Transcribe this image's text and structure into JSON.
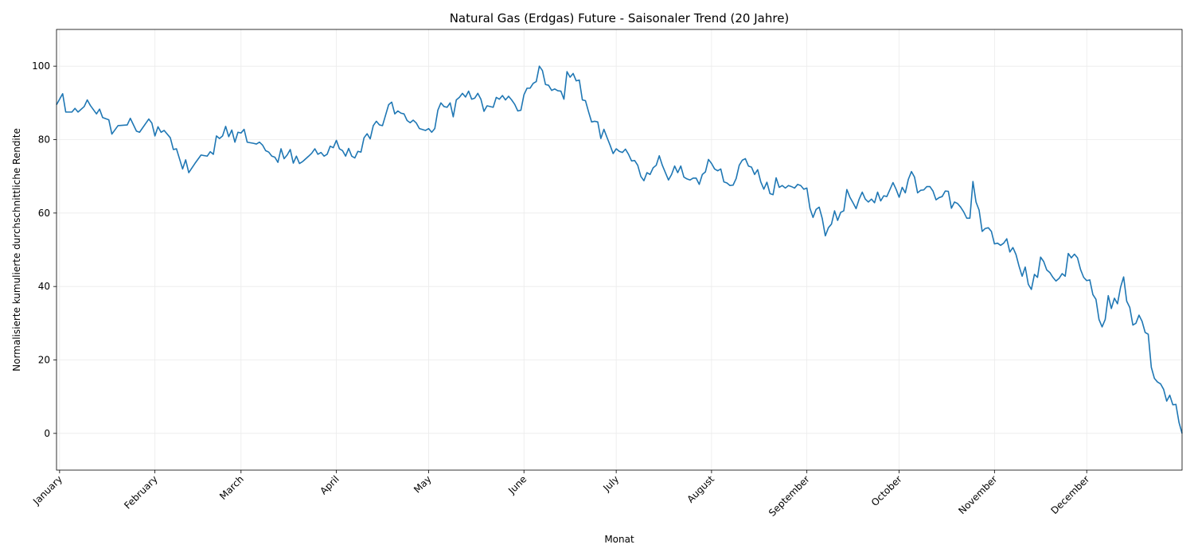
{
  "chart_data": {
    "type": "line",
    "title": "Natural Gas (Erdgas) Future - Saisonaler Trend (20 Jahre)",
    "x_label": "Monat",
    "y_label": "Normalisierte kumulierte durchschnittliche Rendite",
    "xlim": [
      0,
      366
    ],
    "ylim": [
      -10,
      110
    ],
    "xticks": [
      {
        "value": 1,
        "label": "January"
      },
      {
        "value": 32,
        "label": "February"
      },
      {
        "value": 60,
        "label": "March"
      },
      {
        "value": 91,
        "label": "April"
      },
      {
        "value": 121,
        "label": "May"
      },
      {
        "value": 152,
        "label": "June"
      },
      {
        "value": 182,
        "label": "July"
      },
      {
        "value": 213,
        "label": "August"
      },
      {
        "value": 244,
        "label": "September"
      },
      {
        "value": 274,
        "label": "October"
      },
      {
        "value": 305,
        "label": "November"
      },
      {
        "value": 335,
        "label": "December"
      }
    ],
    "yticks": [
      0,
      20,
      40,
      60,
      80,
      100
    ],
    "grid": true,
    "series": [
      {
        "color": "#1f77b4",
        "x": [
          0,
          2,
          3,
          5,
          6,
          7,
          9,
          10,
          11,
          13,
          14,
          15,
          17,
          18,
          20,
          23,
          24,
          26,
          27,
          30,
          31,
          32,
          33,
          34,
          35,
          37,
          38,
          39,
          41,
          42,
          43,
          45,
          47,
          49,
          50,
          51,
          52,
          53,
          54,
          55,
          56,
          57,
          58,
          59,
          60,
          61,
          62,
          64,
          65,
          66,
          67,
          68,
          69,
          70,
          71,
          72,
          73,
          74,
          75,
          76,
          77,
          78,
          79,
          80,
          82,
          83,
          84,
          85,
          86,
          87,
          88,
          89,
          90,
          91,
          92,
          93,
          94,
          95,
          96,
          97,
          98,
          99,
          100,
          101,
          102,
          103,
          104,
          105,
          106,
          108,
          109,
          110,
          111,
          112,
          113,
          114,
          115,
          116,
          117,
          118,
          120,
          121,
          122,
          123,
          124,
          125,
          126,
          127,
          128,
          129,
          130,
          131,
          132,
          133,
          134,
          135,
          136,
          137,
          138,
          139,
          140,
          142,
          143,
          144,
          145,
          146,
          147,
          148,
          149,
          150,
          151,
          152,
          153,
          154,
          155,
          156,
          157,
          158,
          159,
          160,
          161,
          162,
          163,
          164,
          165,
          166,
          167,
          168,
          169,
          170,
          171,
          172,
          173,
          174,
          175,
          176,
          177,
          178,
          179,
          180,
          181,
          182,
          183,
          184,
          185,
          186,
          187,
          188,
          189,
          190,
          191,
          192,
          193,
          194,
          195,
          196,
          197,
          198,
          199,
          200,
          201,
          202,
          203,
          204,
          205,
          206,
          207,
          208,
          209,
          210,
          211,
          212,
          213,
          214,
          215,
          216,
          217,
          218,
          219,
          220,
          221,
          222,
          223,
          224,
          225,
          226,
          227,
          228,
          229,
          230,
          231,
          232,
          233,
          234,
          235,
          236,
          237,
          238,
          239,
          240,
          241,
          242,
          243,
          244,
          245,
          246,
          247,
          248,
          249,
          250,
          251,
          252,
          253,
          254,
          255,
          256,
          257,
          258,
          259,
          260,
          261,
          262,
          263,
          264,
          265,
          266,
          267,
          268,
          269,
          270,
          271,
          272,
          273,
          274,
          275,
          276,
          277,
          278,
          279,
          280,
          281,
          282,
          283,
          284,
          285,
          286,
          287,
          288,
          289,
          290,
          291,
          292,
          293,
          294,
          295,
          296,
          297,
          298,
          299,
          300,
          301,
          302,
          303,
          304,
          305,
          306,
          307,
          308,
          309,
          310,
          311,
          312,
          313,
          314,
          315,
          316,
          317,
          318,
          319,
          320,
          321,
          322,
          323,
          324,
          325,
          326,
          327,
          328,
          329,
          330,
          331,
          332,
          333,
          334,
          335,
          336,
          337,
          338,
          339,
          340,
          341,
          342,
          343,
          344,
          345,
          346,
          347,
          348,
          349,
          350,
          351,
          352,
          353,
          354,
          355,
          356,
          357,
          358,
          359,
          360,
          361,
          362,
          363,
          364,
          365,
          366
        ],
        "values": [
          89.5,
          92.5,
          87.5,
          87.5,
          88.5,
          87.5,
          89,
          90.8,
          89.3,
          87,
          88.3,
          86,
          85.4,
          81.5,
          83.8,
          84,
          85.8,
          82.3,
          82,
          85.6,
          84.5,
          81,
          83.5,
          82,
          82.5,
          80.5,
          77.3,
          77.5,
          72,
          74.5,
          71,
          73.5,
          75.8,
          75.5,
          76.7,
          76,
          81,
          80.3,
          81,
          83.6,
          80.8,
          82.6,
          79.3,
          82,
          81.8,
          82.8,
          79.3,
          79,
          78.8,
          79.3,
          78.5,
          77,
          76.6,
          75.5,
          75.2,
          73.8,
          77.5,
          74.8,
          75.8,
          77.3,
          73.6,
          75.5,
          73.5,
          74,
          75.5,
          76.3,
          77.5,
          76,
          76.5,
          75.5,
          76,
          78.2,
          77.8,
          79.8,
          77.5,
          77,
          75.5,
          77.6,
          75.5,
          75,
          76.8,
          76.6,
          80.5,
          81.6,
          80.2,
          83.8,
          85,
          84,
          83.8,
          89.5,
          90.2,
          87,
          87.8,
          87.2,
          87,
          85.2,
          84.6,
          85.3,
          84.5,
          83,
          82.5,
          83,
          82,
          83,
          88,
          90,
          89,
          88.8,
          90,
          86.2,
          90.8,
          91.5,
          92.6,
          91.6,
          93.2,
          91,
          91.3,
          92.6,
          91,
          87.7,
          89.2,
          88.8,
          91.5,
          91,
          92,
          90.8,
          91.8,
          90.8,
          89.6,
          87.8,
          88,
          92.2,
          94,
          94,
          95.3,
          95.8,
          100,
          98.8,
          95,
          94.8,
          93.4,
          93.8,
          93.3,
          93.2,
          91,
          98.5,
          97,
          98,
          96,
          96.2,
          90.8,
          90.6,
          87.6,
          84.8,
          85,
          84.8,
          80.3,
          82.8,
          80.6,
          78.5,
          76.2,
          77.5,
          76.8,
          76.5,
          77.4,
          76,
          74.2,
          74.3,
          73,
          70,
          68.8,
          71,
          70.5,
          72.3,
          73,
          75.6,
          73,
          71,
          69,
          70.5,
          72.8,
          71,
          72.8,
          69.8,
          69.3,
          69,
          69.5,
          69.5,
          67.8,
          70.5,
          71.2,
          74.6,
          73.5,
          72,
          71.5,
          72,
          68.5,
          68.2,
          67.5,
          67.6,
          69.4,
          73,
          74.4,
          74.8,
          72.8,
          72.5,
          70.5,
          71.8,
          68.5,
          66.5,
          68.4,
          65.3,
          65,
          69.6,
          67,
          67.5,
          66.8,
          67.5,
          67.2,
          66.8,
          67.8,
          67.5,
          66.5,
          66.8,
          61.3,
          58.8,
          61,
          61.6,
          58.5,
          53.8,
          56,
          57,
          60.6,
          58,
          60.2,
          60.6,
          66.4,
          64.3,
          62.8,
          61.2,
          63.8,
          65.7,
          63.8,
          63,
          63.8,
          62.8,
          65.7,
          63.3,
          64.7,
          64.5,
          66.4,
          68.3,
          66.5,
          64.3,
          67,
          65.5,
          69.2,
          71.3,
          69.8,
          65.5,
          66.2,
          66.3,
          67.2,
          67.2,
          66,
          63.6,
          64.2,
          64.5,
          66,
          65.9,
          61.3,
          63,
          62.6,
          61.6,
          60.3,
          58.6,
          58.6,
          68.6,
          63,
          60.8,
          55,
          55.8,
          56,
          55,
          51.6,
          51.8,
          51.2,
          51.8,
          53,
          49.4,
          50.6,
          48.7,
          45.5,
          42.8,
          45.3,
          40.6,
          39.2,
          43.3,
          42.5,
          48,
          46.8,
          44.5,
          43.8,
          42.5,
          41.5,
          42.2,
          43.5,
          42.8,
          49,
          47.8,
          48.8,
          47.8,
          44.6,
          42.5,
          41.6,
          41.8,
          37.8,
          36.5,
          31,
          29,
          31,
          37.5,
          34,
          36.8,
          35.3,
          39.8,
          42.6,
          36,
          34.3,
          29.5,
          30,
          32.2,
          30.5,
          27.5,
          27,
          18,
          15,
          14,
          13.5,
          12,
          8.8,
          10.4,
          7.8,
          7.9,
          3,
          0
        ]
      }
    ]
  }
}
